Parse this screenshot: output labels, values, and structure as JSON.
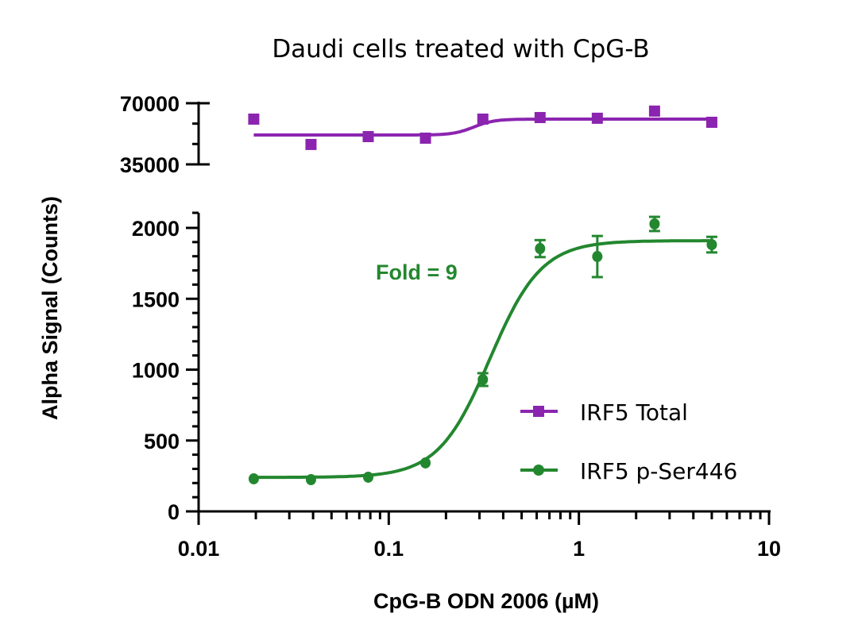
{
  "chart_data": {
    "type": "scatter",
    "title": "Daudi cells treated with CpG-B",
    "xlabel": "CpG-B ODN 2006 (µM)",
    "ylabel": "Alpha Signal (Counts)",
    "x_scale": "log",
    "xlim": [
      0.01,
      10
    ],
    "x_ticks": [
      "0.01",
      "0.1",
      "1",
      "10"
    ],
    "panels": {
      "top": {
        "ylim": [
          35000,
          70000
        ],
        "y_ticks": [
          "35000",
          "70000"
        ]
      },
      "bottom": {
        "ylim": [
          0,
          2000
        ],
        "y_ticks": [
          "0",
          "500",
          "1000",
          "1500",
          "2000"
        ]
      }
    },
    "annotation": "Fold = 9",
    "legend_position": "lower-right",
    "series": [
      {
        "name": "IRF5 Total",
        "panel": "top",
        "marker": "square",
        "color": "#8B25B0",
        "x": [
          0.0195,
          0.039,
          0.078,
          0.156,
          0.3125,
          0.625,
          1.25,
          2.5,
          5
        ],
        "y": [
          60900,
          46400,
          50900,
          50000,
          60900,
          61800,
          61400,
          65500,
          59100
        ],
        "fit": {
          "bottom": 51800,
          "top": 60900,
          "ec50": 0.28,
          "hill": 8
        }
      },
      {
        "name": "IRF5 p-Ser446",
        "panel": "bottom",
        "marker": "circle",
        "color": "#23872F",
        "x": [
          0.0195,
          0.039,
          0.078,
          0.156,
          0.3125,
          0.625,
          1.25,
          2.5,
          5
        ],
        "y": [
          230,
          224,
          241,
          342,
          930,
          1854,
          1798,
          2028,
          1882
        ],
        "error": [
          10,
          10,
          10,
          15,
          45,
          60,
          145,
          50,
          55
        ],
        "fit": {
          "bottom": 240,
          "top": 1910,
          "ec50": 0.34,
          "hill": 3.2
        }
      }
    ]
  }
}
